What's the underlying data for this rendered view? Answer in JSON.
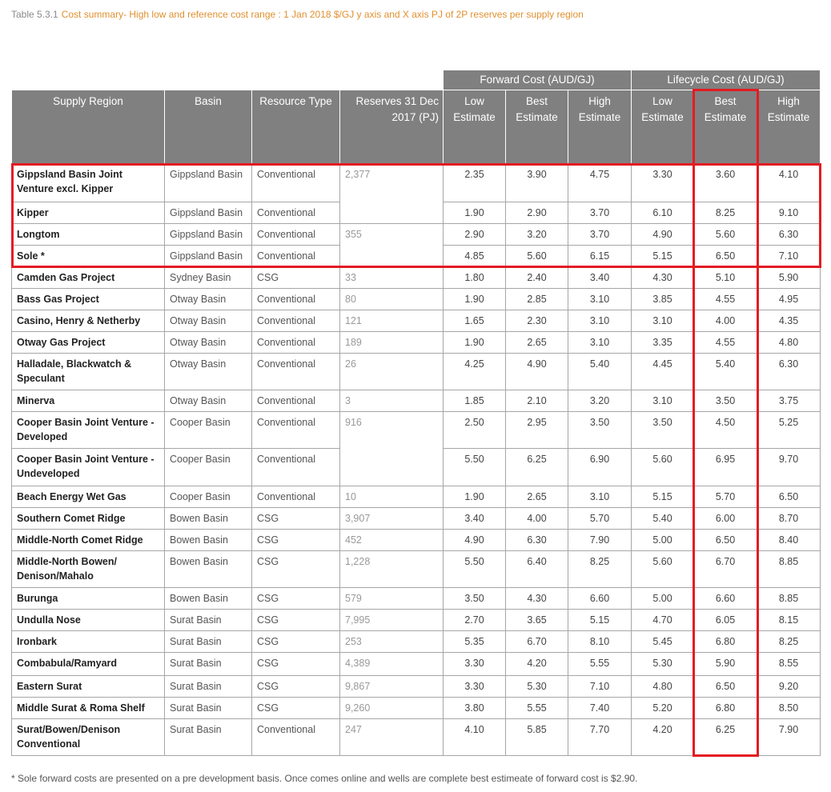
{
  "caption": {
    "number": "Table 5.3.1",
    "title": "Cost summary- High low and reference cost range : 1 Jan 2018 $/GJ y axis and X axis PJ of 2P reserves per supply region"
  },
  "table": {
    "group_headers": {
      "forward": "Forward Cost (AUD/GJ)",
      "lifecycle": "Lifecycle Cost (AUD/GJ)"
    },
    "headers": [
      "Supply Region",
      "Basin",
      "Resource Type",
      "Reserves 31 Dec 2017 (PJ)",
      "Low Estimate",
      "Best Estimate",
      "High Estimate",
      "Low Estimate",
      "Best Estimate",
      "High Estimate"
    ],
    "rows": [
      [
        "Gippsland Basin Joint Venture excl. Kipper",
        "Gippsland Basin",
        "Conventional",
        "2,377",
        "2.35",
        "3.90",
        "4.75",
        "3.30",
        "3.60",
        "4.10"
      ],
      [
        "Kipper",
        "Gippsland Basin",
        "Conventional",
        null,
        "1.90",
        "2.90",
        "3.70",
        "6.10",
        "8.25",
        "9.10"
      ],
      [
        "Longtom",
        "Gippsland Basin",
        "Conventional",
        "355",
        "2.90",
        "3.20",
        "3.70",
        "4.90",
        "5.60",
        "6.30"
      ],
      [
        "Sole  *",
        "Gippsland Basin",
        "Conventional",
        null,
        "4.85",
        "5.60",
        "6.15",
        "5.15",
        "6.50",
        "7.10"
      ],
      [
        "Camden Gas Project",
        "Sydney Basin",
        "CSG",
        "33",
        "1.80",
        "2.40",
        "3.40",
        "4.30",
        "5.10",
        "5.90"
      ],
      [
        "Bass Gas Project",
        "Otway Basin",
        "Conventional",
        "80",
        "1.90",
        "2.85",
        "3.10",
        "3.85",
        "4.55",
        "4.95"
      ],
      [
        "Casino, Henry & Netherby",
        "Otway Basin",
        "Conventional",
        "121",
        "1.65",
        "2.30",
        "3.10",
        "3.10",
        "4.00",
        "4.35"
      ],
      [
        "Otway Gas Project",
        "Otway Basin",
        "Conventional",
        "189",
        "1.90",
        "2.65",
        "3.10",
        "3.35",
        "4.55",
        "4.80"
      ],
      [
        "Halladale, Blackwatch & Speculant",
        "Otway Basin",
        "Conventional",
        "26",
        "4.25",
        "4.90",
        "5.40",
        "4.45",
        "5.40",
        "6.30"
      ],
      [
        "Minerva",
        "Otway Basin",
        "Conventional",
        "3",
        "1.85",
        "2.10",
        "3.20",
        "3.10",
        "3.50",
        "3.75"
      ],
      [
        "Cooper Basin Joint Venture  - Developed",
        "Cooper Basin",
        "Conventional",
        "916",
        "2.50",
        "2.95",
        "3.50",
        "3.50",
        "4.50",
        "5.25"
      ],
      [
        "Cooper Basin Joint Venture  - Undeveloped",
        "Cooper Basin",
        "Conventional",
        null,
        "5.50",
        "6.25",
        "6.90",
        "5.60",
        "6.95",
        "9.70"
      ],
      [
        "Beach Energy Wet Gas",
        "Cooper Basin",
        "Conventional",
        "10",
        "1.90",
        "2.65",
        "3.10",
        "5.15",
        "5.70",
        "6.50"
      ],
      [
        "Southern Comet Ridge",
        "Bowen Basin",
        "CSG",
        "3,907",
        "3.40",
        "4.00",
        "5.70",
        "5.40",
        "6.00",
        "8.70"
      ],
      [
        "Middle-North Comet Ridge",
        "Bowen Basin",
        "CSG",
        "452",
        "4.90",
        "6.30",
        "7.90",
        "5.00",
        "6.50",
        "8.40"
      ],
      [
        "Middle-North Bowen/ Denison/Mahalo",
        "Bowen Basin",
        "CSG",
        "1,228",
        "5.50",
        "6.40",
        "8.25",
        "5.60",
        "6.70",
        "8.85"
      ],
      [
        "Burunga",
        "Bowen Basin",
        "CSG",
        "579",
        "3.50",
        "4.30",
        "6.60",
        "5.00",
        "6.60",
        "8.85"
      ],
      [
        "Undulla Nose",
        "Surat Basin",
        "CSG",
        "7,995",
        "2.70",
        "3.65",
        "5.15",
        "4.70",
        "6.05",
        "8.15"
      ],
      [
        "Ironbark",
        "Surat Basin",
        "CSG",
        "253",
        "5.35",
        "6.70",
        "8.10",
        "5.45",
        "6.80",
        "8.25"
      ],
      [
        "Combabula/Ramyard",
        "Surat Basin",
        "CSG",
        "4,389",
        "3.30",
        "4.20",
        "5.55",
        "5.30",
        "5.90",
        "8.55"
      ],
      [
        "Eastern Surat",
        "Surat Basin",
        "CSG",
        "9,867",
        "3.30",
        "5.30",
        "7.10",
        "4.80",
        "6.50",
        "9.20"
      ],
      [
        "Middle Surat & Roma Shelf",
        "Surat Basin",
        "CSG",
        "9,260",
        "3.80",
        "5.55",
        "7.40",
        "5.20",
        "6.80",
        "8.50"
      ],
      [
        "Surat/Bowen/Denison Conventional",
        "Surat Basin",
        "Conventional",
        "247",
        "4.10",
        "5.85",
        "7.70",
        "4.20",
        "6.25",
        "7.90"
      ]
    ]
  },
  "highlight_color": "#e31c23",
  "footnote": "* Sole forward costs are presented on a pre development basis. Once comes online and wells are complete best estimeate of forward cost is $2.90."
}
